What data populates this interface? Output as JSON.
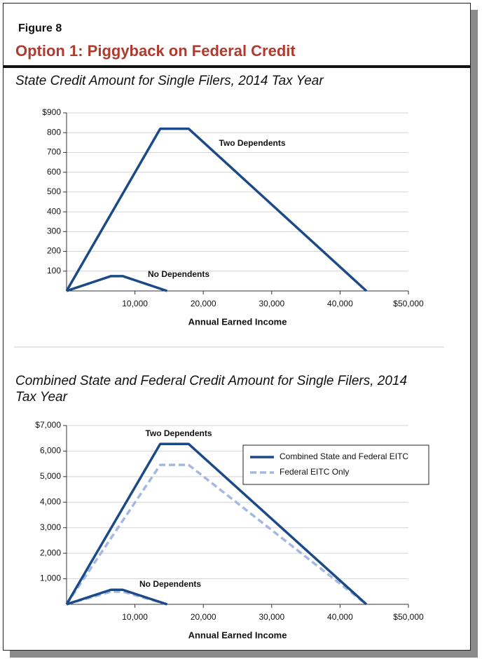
{
  "header": {
    "figure": "Figure 8",
    "title": "Option 1: Piggyback on Federal Credit"
  },
  "chart_data": [
    {
      "type": "line",
      "title": "State Credit Amount for Single Filers, 2014 Tax Year",
      "xlabel": "Annual Earned Income",
      "xlim": [
        0,
        50000
      ],
      "xticks": [
        {
          "value": 10000,
          "label": "10,000"
        },
        {
          "value": 20000,
          "label": "20,000"
        },
        {
          "value": 30000,
          "label": "30,000"
        },
        {
          "value": 40000,
          "label": "40,000"
        },
        {
          "value": 50000,
          "label": "$50,000"
        }
      ],
      "ylim": [
        0,
        900
      ],
      "yticks": [
        100,
        200,
        300,
        400,
        500,
        600,
        700,
        800,
        {
          "value": 900,
          "label": "$900"
        }
      ],
      "grid": true,
      "legend": false,
      "series": [
        {
          "color": "#1c4a86",
          "dashed": false,
          "x": [
            0,
            13700,
            17850,
            43850,
            null,
            0,
            6500,
            8200,
            14700
          ],
          "values": [
            0,
            820,
            820,
            0,
            null,
            0,
            75,
            75,
            0
          ]
        }
      ],
      "annotations": [
        "Two Dependents",
        "No Dependents"
      ]
    },
    {
      "type": "line",
      "title": "Combined State and Federal Credit Amount for Single Filers, 2014 Tax Year",
      "xlabel": "Annual Earned Income",
      "xlim": [
        0,
        50000
      ],
      "xticks": [
        {
          "value": 10000,
          "label": "10,000"
        },
        {
          "value": 20000,
          "label": "20,000"
        },
        {
          "value": 30000,
          "label": "30,000"
        },
        {
          "value": 40000,
          "label": "40,000"
        },
        {
          "value": 50000,
          "label": "$50,000"
        }
      ],
      "ylim": [
        0,
        7000
      ],
      "yticks": [
        {
          "value": 1000,
          "label": "1,000"
        },
        {
          "value": 2000,
          "label": "2,000"
        },
        {
          "value": 3000,
          "label": "3,000"
        },
        {
          "value": 4000,
          "label": "4,000"
        },
        {
          "value": 5000,
          "label": "5,000"
        },
        {
          "value": 6000,
          "label": "6,000"
        },
        {
          "value": 7000,
          "label": "$7,000"
        }
      ],
      "grid": true,
      "legend": "upper right",
      "series": [
        {
          "name": "Combined State and Federal EITC",
          "color": "#1c4a86",
          "dashed": false,
          "x": [
            0,
            13700,
            17850,
            43850,
            null,
            0,
            6500,
            8200,
            14700
          ],
          "values": [
            0,
            6280,
            6280,
            0,
            null,
            0,
            570,
            570,
            0
          ]
        },
        {
          "name": "Federal EITC Only",
          "color": "#a3b9e2",
          "dashed": true,
          "x": [
            0,
            13700,
            17850,
            43850,
            null,
            0,
            6500,
            8200,
            14700
          ],
          "values": [
            0,
            5460,
            5460,
            0,
            null,
            0,
            495,
            495,
            0
          ]
        }
      ],
      "annotations": [
        "Two Dependents",
        "No Dependents"
      ]
    }
  ]
}
